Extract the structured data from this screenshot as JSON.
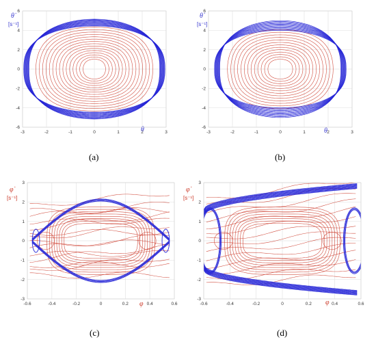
{
  "colors": {
    "outer": "#2323d6",
    "inner": "#cc3a2a",
    "grid": "#e3e3e3",
    "axis_label_theta": "#3b3bd0",
    "axis_label_phi": "#cc3a2a"
  },
  "chart_data": [
    {
      "type": "line",
      "panel_caption": "a",
      "xlabel": "θ",
      "ylabel": "θ̇",
      "yunit": "[s⁻¹]",
      "xlim": [
        -3,
        3
      ],
      "ylim": [
        -6,
        6
      ],
      "xticks": [
        "-3",
        "-2",
        "-1",
        "0",
        "1",
        "2",
        "3"
      ],
      "yticks": [
        "6",
        "4",
        "2",
        "0",
        "-2",
        "-4",
        "-6"
      ],
      "grid": true,
      "series": [
        {
          "values": {
            "kind": "closed-orbits",
            "x_amplitudes": [
              0.5,
              0.65,
              0.8,
              0.95,
              1.1,
              1.25,
              1.4,
              1.55,
              1.7,
              1.85,
              2.0,
              2.15,
              2.3,
              2.45,
              2.6
            ],
            "y_amplitude_range": [
              1.0,
              3.9
            ],
            "color": "inner"
          }
        },
        {
          "values": {
            "kind": "separatrix-band",
            "x_amplitude": 2.95,
            "y_peak_range": [
              4.45,
              5.15
            ],
            "color": "outer"
          }
        }
      ]
    },
    {
      "type": "line",
      "panel_caption": "b",
      "xlabel": "θ",
      "ylabel": "θ̇",
      "yunit": "[s⁻¹]",
      "xlim": [
        -3,
        3
      ],
      "ylim": [
        -6,
        6
      ],
      "xticks": [
        "-3",
        "-2",
        "-1",
        "0",
        "1",
        "2",
        "3"
      ],
      "yticks": [
        "6",
        "4",
        "2",
        "0",
        "-2",
        "-4",
        "-6"
      ],
      "grid": true,
      "series": [
        {
          "values": {
            "kind": "closed-orbits",
            "x_amplitudes": [
              0.55,
              0.7,
              0.85,
              1.0,
              1.15,
              1.3,
              1.45,
              1.6,
              1.75,
              1.9,
              2.05,
              2.2,
              2.35
            ],
            "y_amplitude_range": [
              1.0,
              3.7
            ],
            "color": "inner"
          }
        },
        {
          "values": {
            "kind": "separatrix-band",
            "x_amplitude": 2.75,
            "y_peak_range": [
              4.0,
              5.0
            ],
            "color": "outer"
          }
        }
      ]
    },
    {
      "type": "line",
      "panel_caption": "c",
      "xlabel": "φ",
      "ylabel": "φ̇",
      "yunit": "[s⁻¹]",
      "xlim": [
        -0.6,
        0.6
      ],
      "ylim": [
        -3,
        3
      ],
      "xticks": [
        "-0.6",
        "-0.4",
        "-0.2",
        "0",
        "0.2",
        "0.4",
        "0.6"
      ],
      "yticks": [
        "3",
        "2",
        "1",
        "0",
        "-1",
        "-2",
        "-3"
      ],
      "grid": true,
      "series": [
        {
          "values": {
            "kind": "chaotic-red",
            "color": "inner"
          }
        },
        {
          "values": {
            "kind": "pendulum-separatrix",
            "x_edges": [
              -0.56,
              0.56
            ],
            "y_peak": 2.05,
            "color": "outer"
          }
        }
      ]
    },
    {
      "type": "line",
      "panel_caption": "d",
      "xlabel": "φ",
      "ylabel": "φ̇",
      "yunit": "[s⁻¹]",
      "xlim": [
        -0.6,
        0.6
      ],
      "ylim": [
        -3,
        3
      ],
      "xticks": [
        "-0.6",
        "-0.4",
        "-0.2",
        "0",
        "0.2",
        "0.4",
        "0.6"
      ],
      "yticks": [
        "3",
        "2",
        "1",
        "0",
        "-1",
        "-2",
        "-3"
      ],
      "grid": true,
      "series": [
        {
          "values": {
            "kind": "chaotic-red-wide",
            "color": "inner"
          }
        },
        {
          "values": {
            "kind": "rotating-band",
            "y_start_range": [
              1.3,
              1.6
            ],
            "y_end_range": [
              2.7,
              2.95
            ],
            "color": "outer"
          }
        }
      ]
    }
  ],
  "captions": [
    "(a)",
    "(b)",
    "(c)",
    "(d)"
  ]
}
